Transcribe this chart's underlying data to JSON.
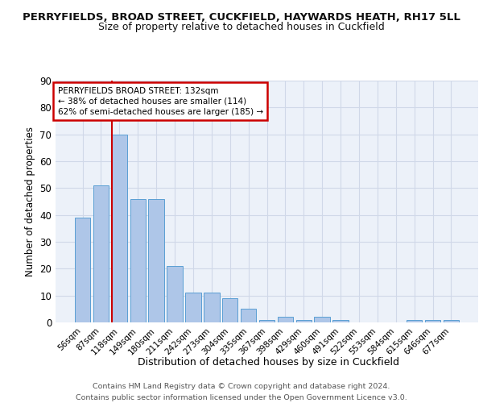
{
  "title1": "PERRYFIELDS, BROAD STREET, CUCKFIELD, HAYWARDS HEATH, RH17 5LL",
  "title2": "Size of property relative to detached houses in Cuckfield",
  "xlabel": "Distribution of detached houses by size in Cuckfield",
  "ylabel": "Number of detached properties",
  "categories": [
    "56sqm",
    "87sqm",
    "118sqm",
    "149sqm",
    "180sqm",
    "211sqm",
    "242sqm",
    "273sqm",
    "304sqm",
    "335sqm",
    "367sqm",
    "398sqm",
    "429sqm",
    "460sqm",
    "491sqm",
    "522sqm",
    "553sqm",
    "584sqm",
    "615sqm",
    "646sqm",
    "677sqm"
  ],
  "values": [
    39,
    51,
    70,
    46,
    46,
    21,
    11,
    11,
    9,
    5,
    1,
    2,
    1,
    2,
    1,
    0,
    0,
    0,
    1,
    1,
    1
  ],
  "bar_color": "#aec6e8",
  "bar_edge_color": "#5a9fd4",
  "vline_color": "#cc0000",
  "vline_index": 2,
  "annotation_text": "PERRYFIELDS BROAD STREET: 132sqm\n← 38% of detached houses are smaller (114)\n62% of semi-detached houses are larger (185) →",
  "annotation_box_color": "#ffffff",
  "annotation_box_edge": "#cc0000",
  "ylim": [
    0,
    90
  ],
  "yticks": [
    0,
    10,
    20,
    30,
    40,
    50,
    60,
    70,
    80,
    90
  ],
  "grid_color": "#d0d8e8",
  "footer_text": "Contains HM Land Registry data © Crown copyright and database right 2024.\nContains public sector information licensed under the Open Government Licence v3.0.",
  "bg_color": "#ecf1f9"
}
